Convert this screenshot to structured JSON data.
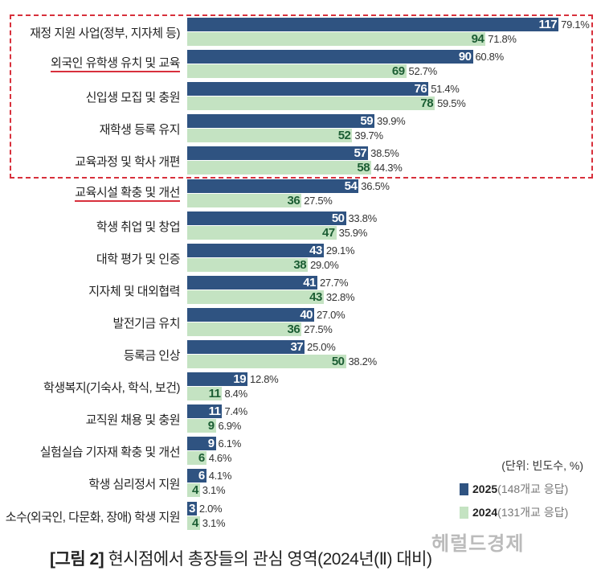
{
  "chart_data": {
    "type": "bar",
    "orientation": "horizontal",
    "title": "[그림 2] 현시점에서 총장들의 관심 영역(2024년(Ⅱ) 대비)",
    "unit_note": "(단위: 빈도수, %)",
    "categories": [
      "재정 지원 사업(정부, 지자체 등)",
      "외국인 유학생 유치 및 교육",
      "신입생 모집 및 충원",
      "재학생 등록 유지",
      "교육과정 및 학사 개편",
      "교육시설 확충 및 개선",
      "학생 취업 및 창업",
      "대학 평가 및 인증",
      "지자체 및 대외협력",
      "발전기금 유치",
      "등록금 인상",
      "학생복지(기숙사, 학식, 보건)",
      "교직원 채용 및 충원",
      "실험실습 기자재 확충 및 개선",
      "학생 심리정서 지원",
      "소수(외국인, 다문화, 장애) 학생 지원"
    ],
    "underlined": [
      1,
      5
    ],
    "highlighted_range": [
      0,
      4
    ],
    "series": [
      {
        "name": "2025",
        "note": "(148개교 응답)",
        "color": "#2f5381",
        "values": [
          117,
          90,
          76,
          59,
          57,
          54,
          50,
          43,
          41,
          40,
          37,
          19,
          11,
          9,
          6,
          3
        ],
        "percents": [
          "79.1%",
          "60.8%",
          "51.4%",
          "39.9%",
          "38.5%",
          "36.5%",
          "33.8%",
          "29.1%",
          "27.7%",
          "27.0%",
          "25.0%",
          "12.8%",
          "7.4%",
          "6.1%",
          "4.1%",
          "2.0%"
        ]
      },
      {
        "name": "2024",
        "note": "(131개교 응답)",
        "color": "#c4e3c2",
        "values": [
          94,
          69,
          78,
          52,
          58,
          36,
          47,
          38,
          43,
          36,
          50,
          11,
          9,
          6,
          4,
          4
        ],
        "percents": [
          "71.8%",
          "52.7%",
          "59.5%",
          "39.7%",
          "44.3%",
          "27.5%",
          "35.9%",
          "29.0%",
          "32.8%",
          "27.5%",
          "38.2%",
          "8.4%",
          "6.9%",
          "4.6%",
          "3.1%",
          "3.1%"
        ]
      }
    ]
  },
  "caption": {
    "prefix": "[그림 2]",
    "text": " 현시점에서 총장들의 관심 영역(2024년(Ⅱ) 대비)"
  },
  "watermark": "헤럴드경제"
}
